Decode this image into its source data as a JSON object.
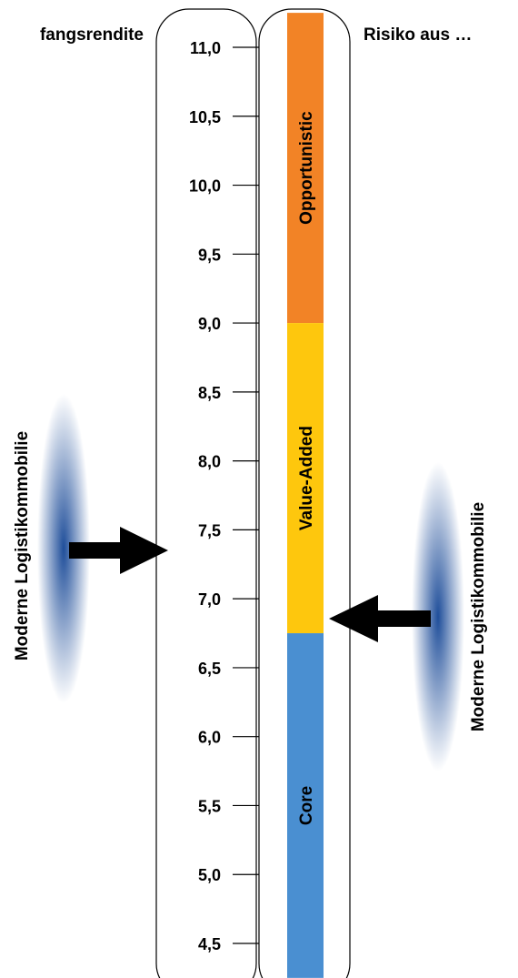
{
  "header": {
    "left_title": "fangsrendite",
    "right_title": "Risiko aus …"
  },
  "scale": {
    "min": 4.25,
    "max": 11.25,
    "ticks": [
      "11,0",
      "10,5",
      "10,0",
      "9,5",
      "9,0",
      "8,5",
      "8,0",
      "7,5",
      "7,0",
      "6,5",
      "6,0",
      "5,5",
      "5,0",
      "4,5"
    ],
    "tick_values": [
      11.0,
      10.5,
      10.0,
      9.5,
      9.0,
      8.5,
      8.0,
      7.5,
      7.0,
      6.5,
      6.0,
      5.5,
      5.0,
      4.5
    ]
  },
  "risk_bands": [
    {
      "name": "Opportunistic",
      "from": 9.0,
      "to": 11.25,
      "color": "#F28326"
    },
    {
      "name": "Value-Added",
      "from": 6.75,
      "to": 9.0,
      "color": "#FEC70D"
    },
    {
      "name": "Core",
      "from": 4.25,
      "to": 6.75,
      "color": "#4A8FD1"
    }
  ],
  "markers": {
    "left": {
      "label": "Moderne Logistikommobilie",
      "value": 7.35,
      "color": "#1F4E9A"
    },
    "right": {
      "label": "Moderne Logistikommobilie",
      "value": 6.75,
      "color": "#1F4E9A"
    }
  },
  "colors": {
    "arrow": "#000000",
    "frame": "#000000"
  }
}
